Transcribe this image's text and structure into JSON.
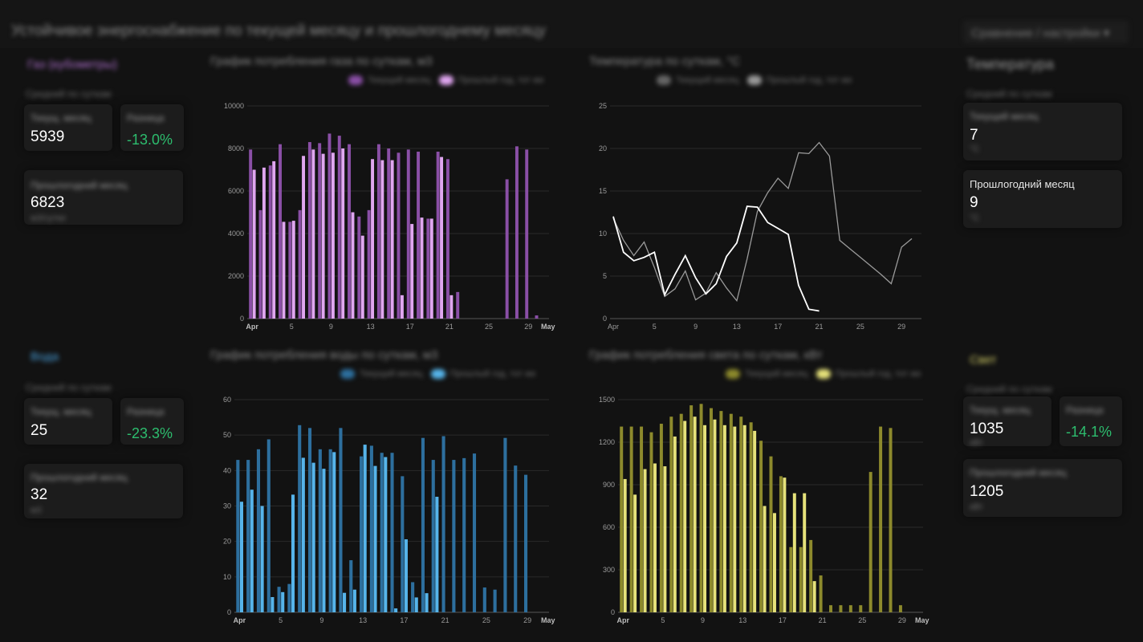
{
  "header": {
    "title": "Устойчивое энергоснабжение по текущей месяцу и прошлогоднему месяцу",
    "period_button": "Сравнение / настройки ▾"
  },
  "sections": {
    "gas": {
      "label": "Газ (кубометры)",
      "sublabel": "Средний по суткам",
      "current": {
        "caption": "Текущ. месяц",
        "value": "5939",
        "unit": ""
      },
      "diff": {
        "caption": "Разница",
        "value": "-13.0%"
      },
      "last_year": {
        "caption": "Прошлогодний месяц",
        "value": "6823",
        "unit": "м3/сутки"
      }
    },
    "temperature": {
      "label": "Температура",
      "sublabel": "Средний по суткам",
      "current": {
        "caption": "Текущий месяц",
        "value": "7",
        "unit": "°C"
      },
      "last_year": {
        "caption": "Прошлогодний месяц",
        "value": "9",
        "unit": "°C"
      }
    },
    "water": {
      "label": "Вода",
      "sublabel": "Средний по суткам",
      "current": {
        "caption": "Текущ. месяц",
        "value": "25",
        "unit": "м3"
      },
      "diff": {
        "caption": "Разница",
        "value": "-23.3%"
      },
      "last_year": {
        "caption": "Прошлогодний месяц",
        "value": "32",
        "unit": "м3"
      }
    },
    "electricity": {
      "label": "Свет",
      "sublabel": "Средний по суткам",
      "current": {
        "caption": "Текущ. месяц",
        "value": "1035",
        "unit": "кВт"
      },
      "diff": {
        "caption": "Разница",
        "value": "-14.1%"
      },
      "last_year": {
        "caption": "Прошлогодний месяц",
        "value": "1205",
        "unit": "кВт"
      }
    }
  },
  "charts": {
    "gas": {
      "title": "График потребления газа по суткам, м3",
      "legend": [
        "Текущий месяц",
        "Прошлый год, тот же"
      ]
    },
    "temperature": {
      "title": "Температура по суткам, °C",
      "legend": [
        "Текущий месяц",
        "Прошлый год, тот же"
      ]
    },
    "water": {
      "title": "График потребления воды по суткам, м3",
      "legend": [
        "Текущий месяц",
        "Прошлый год, тот же"
      ]
    },
    "electricity": {
      "title": "График потребления света по суткам, кВт",
      "legend": [
        "Текущий месяц",
        "Прошлый год, тот же"
      ]
    }
  },
  "colors": {
    "gas_dark": "#8a4fa6",
    "gas_light": "#e0a6f0",
    "water_dark": "#2d6f9e",
    "water_light": "#56b4ea",
    "elec_dark": "#8d8a2c",
    "elec_light": "#e6e27a",
    "temp_current": "#ffffff",
    "temp_last": "#9a9a9a",
    "positive": "#2dbd6e"
  },
  "chart_data": [
    {
      "type": "bar",
      "ylim": [
        0,
        10000
      ],
      "yticks": [
        0,
        2000,
        4000,
        6000,
        8000,
        10000
      ],
      "x_ticks": [
        {
          "day": 1,
          "label": "Apr"
        },
        {
          "day": 5,
          "label": "5"
        },
        {
          "day": 9,
          "label": "9"
        },
        {
          "day": 13,
          "label": "13"
        },
        {
          "day": 17,
          "label": "17"
        },
        {
          "day": 21,
          "label": "21"
        },
        {
          "day": 25,
          "label": "25"
        },
        {
          "day": 29,
          "label": "29"
        },
        {
          "day": 31,
          "label": "May"
        }
      ],
      "series": [
        {
          "role": "last_year",
          "values": [
            7950,
            5100,
            7200,
            8200,
            4550,
            5100,
            8300,
            8250,
            8700,
            8600,
            8200,
            4800,
            5100,
            8200,
            8000,
            7800,
            7950,
            7850,
            4700,
            7850,
            7500,
            1250,
            0,
            0,
            0,
            0,
            6550,
            8100,
            7950,
            150
          ]
        },
        {
          "role": "current",
          "values": [
            7000,
            7100,
            7400,
            4550,
            4600,
            7650,
            7950,
            7750,
            7800,
            8000,
            5000,
            3900,
            7500,
            7450,
            7450,
            1100,
            4450,
            4750,
            4700,
            7600,
            1100
          ]
        }
      ]
    },
    {
      "type": "line",
      "ylim": [
        0,
        25
      ],
      "yticks": [
        0,
        5,
        10,
        15,
        20,
        25
      ],
      "x_ticks": [
        {
          "day": 1,
          "label": "Apr"
        },
        {
          "day": 5,
          "label": "5"
        },
        {
          "day": 9,
          "label": "9"
        },
        {
          "day": 13,
          "label": "13"
        },
        {
          "day": 17,
          "label": "17"
        },
        {
          "day": 21,
          "label": "21"
        },
        {
          "day": 25,
          "label": "25"
        },
        {
          "day": 29,
          "label": "29"
        }
      ],
      "series": [
        {
          "role": "current",
          "x": [
            1,
            2,
            3,
            4,
            5,
            6,
            7,
            8,
            9,
            10,
            11,
            12,
            13,
            14,
            15,
            16,
            17,
            18,
            19,
            20,
            21
          ],
          "values": [
            12,
            7.8,
            6.8,
            7.2,
            7.8,
            2.8,
            5.2,
            7.4,
            4.8,
            2.9,
            4.1,
            7.3,
            8.9,
            13.2,
            13.1,
            11.3,
            10.6,
            9.9,
            3.9,
            1.1,
            0.9
          ]
        },
        {
          "role": "last_year",
          "x": [
            1,
            2,
            3,
            4,
            5,
            6,
            7,
            8,
            9,
            10,
            11,
            12,
            13,
            14,
            15,
            16,
            17,
            18,
            19,
            20,
            21,
            22,
            23,
            24,
            25,
            26,
            27,
            28,
            29,
            30
          ],
          "values": [
            11.8,
            9.2,
            7.4,
            9.0,
            6.0,
            2.6,
            3.5,
            5.6,
            2.2,
            3.0,
            5.4,
            3.6,
            2.1,
            7.0,
            12.6,
            14.8,
            16.5,
            15.3,
            19.5,
            19.4,
            20.7,
            19.1,
            9.2,
            8.2,
            7.2,
            6.2,
            5.2,
            4.1,
            8.4,
            9.4
          ]
        }
      ]
    },
    {
      "type": "bar",
      "ylim": [
        0,
        60
      ],
      "yticks": [
        0,
        10,
        20,
        30,
        40,
        50,
        60
      ],
      "x_ticks": [
        {
          "day": 1,
          "label": "Apr"
        },
        {
          "day": 5,
          "label": "5"
        },
        {
          "day": 9,
          "label": "9"
        },
        {
          "day": 13,
          "label": "13"
        },
        {
          "day": 17,
          "label": "17"
        },
        {
          "day": 21,
          "label": "21"
        },
        {
          "day": 25,
          "label": "25"
        },
        {
          "day": 29,
          "label": "29"
        },
        {
          "day": 31,
          "label": "May"
        }
      ],
      "series": [
        {
          "role": "last_year",
          "values": [
            43,
            43,
            46,
            48.8,
            7.2,
            8,
            52.8,
            52,
            46,
            46,
            52,
            14.7,
            44,
            47,
            45,
            45,
            38.4,
            8.5,
            49.2,
            43,
            49.7,
            43,
            43.5,
            44.8,
            7,
            6.4,
            49.2,
            41.4,
            38.8,
            0
          ]
        },
        {
          "role": "current",
          "values": [
            31.2,
            34.6,
            30,
            4.3,
            5.7,
            33.2,
            43.6,
            42.2,
            40.5,
            45.2,
            5.5,
            6.4,
            47.3,
            41.3,
            43.8,
            1.1,
            20.6,
            4.2,
            5.4,
            32.6,
            0
          ]
        }
      ]
    },
    {
      "type": "bar",
      "ylim": [
        0,
        1500
      ],
      "yticks": [
        0,
        300,
        600,
        900,
        1200,
        1500
      ],
      "x_ticks": [
        {
          "day": 1,
          "label": "Apr"
        },
        {
          "day": 5,
          "label": "5"
        },
        {
          "day": 9,
          "label": "9"
        },
        {
          "day": 13,
          "label": "13"
        },
        {
          "day": 17,
          "label": "17"
        },
        {
          "day": 21,
          "label": "21"
        },
        {
          "day": 25,
          "label": "25"
        },
        {
          "day": 29,
          "label": "29"
        },
        {
          "day": 31,
          "label": "May"
        }
      ],
      "series": [
        {
          "role": "last_year",
          "values": [
            1310,
            1310,
            1310,
            1270,
            1330,
            1380,
            1400,
            1460,
            1470,
            1440,
            1420,
            1400,
            1380,
            1340,
            1210,
            1100,
            960,
            460,
            460,
            510,
            260,
            50,
            50,
            50,
            50,
            990,
            1310,
            1300,
            50,
            0
          ]
        },
        {
          "role": "current",
          "values": [
            940,
            830,
            1010,
            1050,
            1030,
            1240,
            1350,
            1380,
            1320,
            1360,
            1320,
            1310,
            1320,
            1280,
            750,
            700,
            950,
            840,
            840,
            220,
            0
          ]
        }
      ]
    }
  ]
}
